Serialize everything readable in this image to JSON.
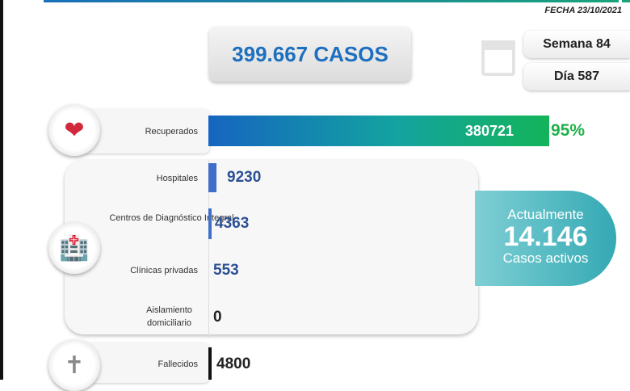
{
  "header": {
    "fecha": "FECHA 23/10/2021",
    "total_casos": "399.667 CASOS",
    "semana": "Semana 84",
    "dia": "Día 587"
  },
  "recuperados": {
    "label": "Recuperados",
    "value": "380721",
    "percent": "95%"
  },
  "atencion": [
    {
      "label": "Hospitales",
      "value": "9230"
    },
    {
      "label": "Centros de Diagnóstico Integral",
      "value": "4363"
    },
    {
      "label": "Clínicas privadas",
      "value": "553"
    },
    {
      "label": "Aislamiento domiciliario",
      "value": "0"
    }
  ],
  "activos": {
    "title": "Actualmente",
    "value": "14.146",
    "subtitle": "Casos activos"
  },
  "fallecidos": {
    "label": "Fallecidos",
    "value": "4800"
  },
  "colors": {
    "accent": "#1d6fbf",
    "green": "#22b14c",
    "teal": "#34a9b4"
  }
}
